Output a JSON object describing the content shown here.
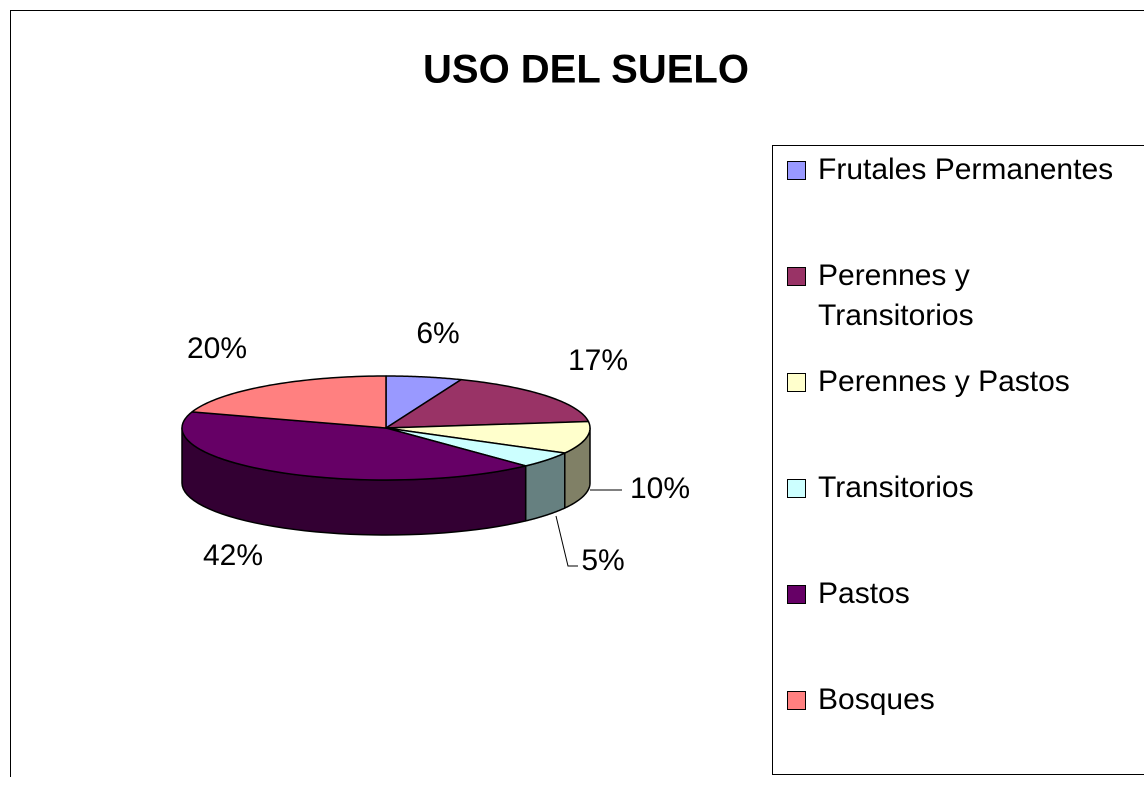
{
  "chart_data": {
    "type": "pie",
    "title": "USO DEL SUELO",
    "categories": [
      "Frutales Permanentes",
      "Perennes y Transitorios",
      "Perennes y Pastos",
      "Transitorios",
      "Pastos",
      "Bosques"
    ],
    "values": [
      6,
      17,
      10,
      5,
      42,
      20
    ],
    "value_labels": [
      "6%",
      "17%",
      "10%",
      "5%",
      "42%",
      "20%"
    ],
    "colors": [
      "#9999ff",
      "#993366",
      "#ffffcc",
      "#ccffff",
      "#660066",
      "#ff8080"
    ],
    "legend": "right"
  }
}
